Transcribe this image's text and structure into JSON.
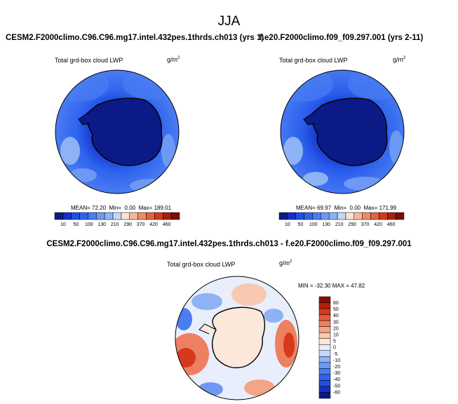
{
  "title": "JJA",
  "colors": {
    "abs_scale": [
      "#0b1a86",
      "#1230c8",
      "#1f4fe0",
      "#2e63ee",
      "#4a7cf2",
      "#6d98f3",
      "#8db2f5",
      "#c3d7f8",
      "#fbe2d4",
      "#f6b79c",
      "#ee8a6a",
      "#e3633f",
      "#cf3a1c",
      "#a81e10",
      "#7a0d08"
    ],
    "diff_scale": [
      "#0b1a86",
      "#1230c8",
      "#1f4fe0",
      "#2e63ee",
      "#4a7cf2",
      "#6d98f3",
      "#8db2f5",
      "#c3d7f8",
      "#e9eefc",
      "#fbe8db",
      "#f8c9b0",
      "#f4a587",
      "#ee8062",
      "#e65b3c",
      "#d7391d",
      "#b81e0f",
      "#8c0c06"
    ]
  },
  "chart_data": [
    {
      "type": "heatmap",
      "projection": "south-polar-stereographic",
      "case_title": "CESM2.F2000climo.C96.C96.mg17.intel.432pes.1thrds.ch013 (yrs 1)",
      "variable": "Total grd-box cloud LWP",
      "units_base": "g/m",
      "units_exp": "2",
      "stats": {
        "mean_label": "MEAN=",
        "mean": "72.20",
        "min_label": "Min=",
        "min": "0.00",
        "max_label": "Max=",
        "max": "189.01"
      },
      "colorbar_labels": [
        "10",
        "50",
        "100",
        "130",
        "210",
        "290",
        "370",
        "420",
        "460"
      ]
    },
    {
      "type": "heatmap",
      "projection": "south-polar-stereographic",
      "case_title": "f.e20.F2000climo.f09_f09.297.001 (yrs 2-11)",
      "variable": "Total grd-box cloud LWP",
      "units_base": "g/m",
      "units_exp": "2",
      "stats": {
        "mean_label": "MEAN=",
        "mean": "69.97",
        "min_label": "Min=",
        "min": "0.00",
        "max_label": "Max=",
        "max": "171.99"
      },
      "colorbar_labels": [
        "10",
        "50",
        "100",
        "130",
        "210",
        "290",
        "370",
        "420",
        "460"
      ]
    },
    {
      "type": "heatmap",
      "projection": "south-polar-stereographic",
      "case_title": "CESM2.F2000climo.C96.C96.mg17.intel.432pes.1thrds.ch013 - f.e20.F2000climo.f09_f09.297.001",
      "variable": "Total grd-box cloud LWP",
      "units_base": "g/m",
      "units_exp": "2",
      "stats_text": "MIN = -32.30 MAX = 47.82",
      "colorbar_labels": [
        "60",
        "50",
        "40",
        "30",
        "20",
        "10",
        "5",
        "0",
        "-5",
        "-10",
        "-20",
        "-30",
        "-40",
        "-50",
        "-60"
      ]
    }
  ]
}
